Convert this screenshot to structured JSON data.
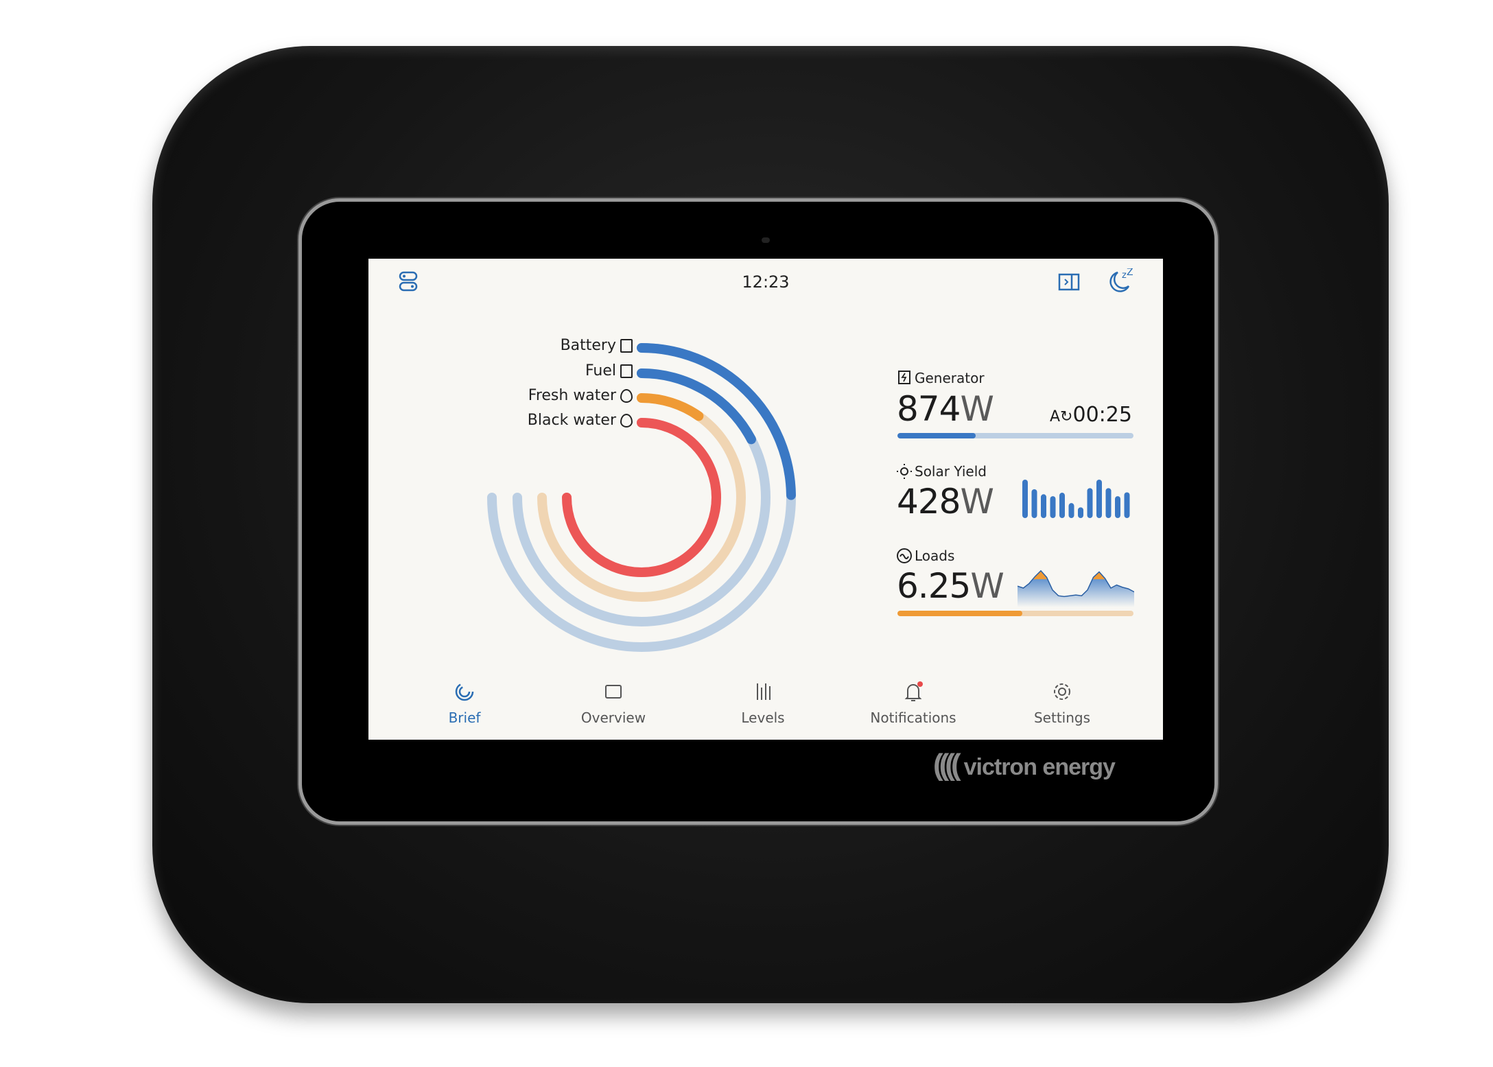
{
  "brand": "victron energy",
  "status_bar": {
    "time": "12:23",
    "icons": [
      "toggles-icon",
      "sidepanel-icon",
      "sleep-moon-icon"
    ]
  },
  "gauges": [
    {
      "label": "Battery",
      "icon": "battery-icon",
      "percent": 33,
      "color": "#3a78c4",
      "track": "#bccfe3"
    },
    {
      "label": "Fuel",
      "icon": "fuel-pump-icon",
      "percent": 23,
      "color": "#3a78c4",
      "track": "#bccfe3"
    },
    {
      "label": "Fresh water",
      "icon": "water-drop-icon",
      "percent": 13,
      "color": "#ef9a35",
      "track": "#f0d5b3"
    },
    {
      "label": "Black water",
      "icon": "waste-drop-icon",
      "percent": 100,
      "color": "#ec5656",
      "track": "#f4c4c4"
    }
  ],
  "generator": {
    "label": "Generator",
    "value": "874",
    "unit": "W",
    "runtime": "00:25",
    "progress": 33,
    "color": "#3a78c4",
    "track": "#bccfe3"
  },
  "solar": {
    "label": "Solar Yield",
    "value": "428",
    "unit": "W",
    "bars": [
      100,
      75,
      62,
      57,
      66,
      39,
      28,
      78,
      100,
      78,
      57,
      67
    ],
    "color": "#3a78c4"
  },
  "loads": {
    "label": "Loads",
    "value": "6.25",
    "unit": "W",
    "progress": 53,
    "color": "#ef9a35",
    "track": "#f0d5b3",
    "sparkline": [
      55,
      50,
      62,
      80,
      95,
      78,
      45,
      30,
      28,
      30,
      32,
      30,
      45,
      78,
      92,
      75,
      50,
      58,
      52,
      48,
      40
    ]
  },
  "nav": [
    {
      "label": "Brief",
      "icon": "brief-icon",
      "active": true
    },
    {
      "label": "Overview",
      "icon": "overview-icon"
    },
    {
      "label": "Levels",
      "icon": "levels-icon"
    },
    {
      "label": "Notifications",
      "icon": "bell-icon",
      "badge": true
    },
    {
      "label": "Settings",
      "icon": "gear-icon"
    }
  ]
}
